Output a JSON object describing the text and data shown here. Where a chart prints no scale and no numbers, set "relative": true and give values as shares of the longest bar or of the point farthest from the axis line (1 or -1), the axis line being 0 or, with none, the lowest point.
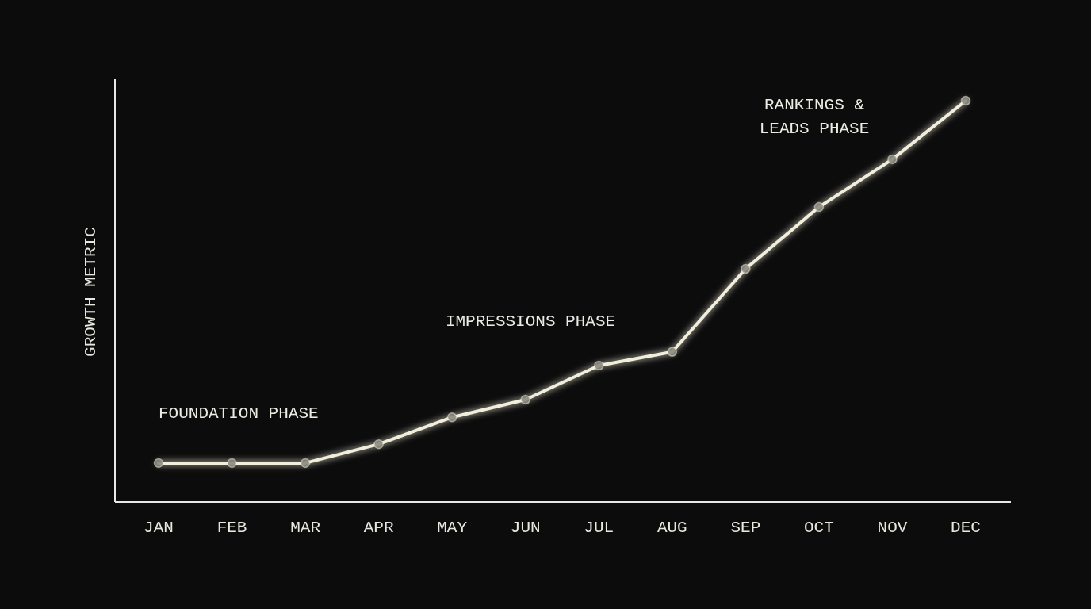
{
  "chart_data": {
    "type": "line",
    "ylabel": "GROWTH METRIC",
    "categories": [
      "JAN",
      "FEB",
      "MAR",
      "APR",
      "MAY",
      "JUN",
      "JUL",
      "AUG",
      "SEP",
      "OCT",
      "NOV",
      "DEC"
    ],
    "relative": true,
    "series": [
      {
        "color": "#f2eedc",
        "values": [
          0.097,
          0.097,
          0.097,
          0.144,
          0.211,
          0.255,
          0.34,
          0.374,
          0.581,
          0.735,
          0.854,
          1
        ]
      }
    ],
    "marker": "circle",
    "line_style": "solid",
    "annotations": [
      "FOUNDATION PHASE",
      "IMPRESSIONS PHASE",
      "RANKINGS &\nLEADS PHASE"
    ]
  }
}
